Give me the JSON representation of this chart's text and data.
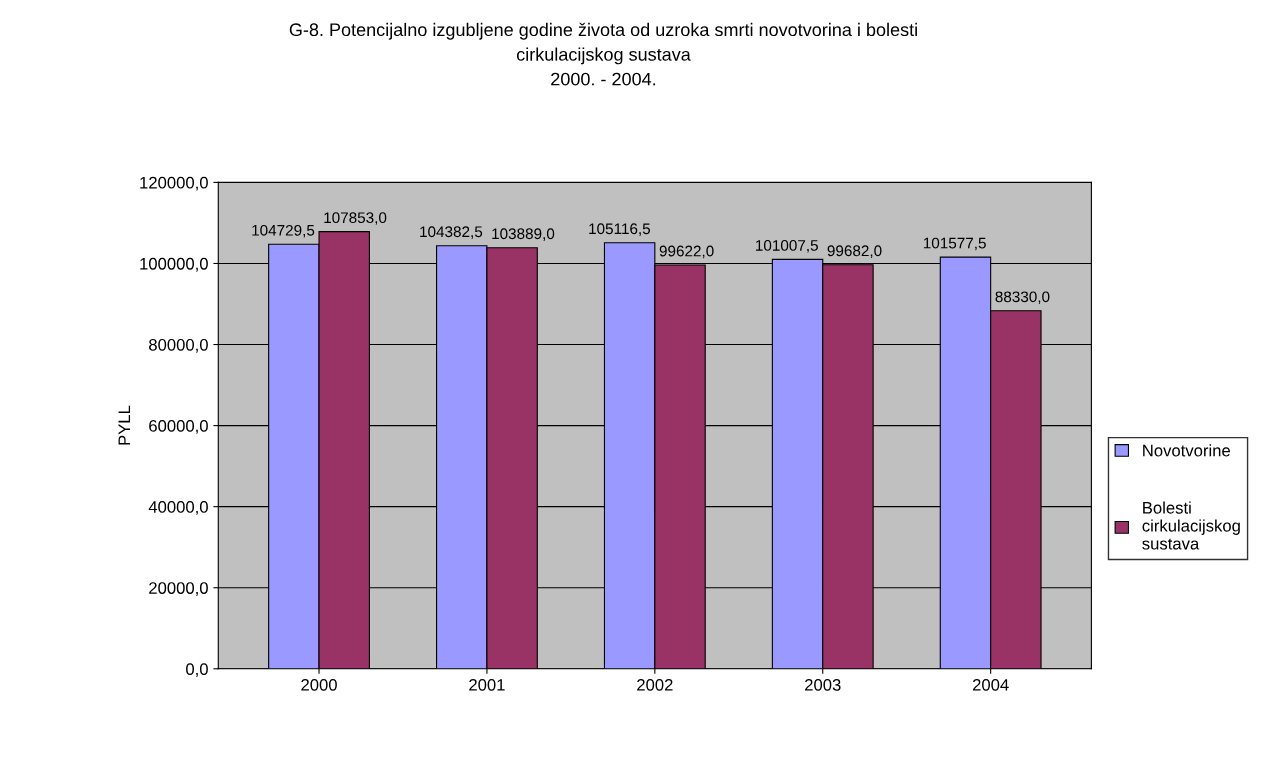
{
  "chart_data": {
    "type": "bar",
    "title": "G-8. Potencijalno izgubljene godine života od uzroka smrti novotvorina i bolesti\ncirkulacijskog sustava\n2000. - 2004.",
    "ylabel": "PYLL",
    "categories": [
      "2000",
      "2001",
      "2002",
      "2003",
      "2004"
    ],
    "series": [
      {
        "name": "Novotvorine",
        "color": "#9999ff",
        "values": [
          104729.5,
          104382.5,
          105116.5,
          101007.5,
          101577.5
        ],
        "value_labels": [
          "104729,5",
          "104382,5",
          "105116,5",
          "101007,5",
          "101577,5"
        ]
      },
      {
        "name": "Bolesti\ncirkulacijskog\nsustava",
        "color": "#993366",
        "values": [
          107853.0,
          103889.0,
          99622.0,
          99682.0,
          88330.0
        ],
        "value_labels": [
          "107853,0",
          "103889,0",
          "99622,0",
          "99682,0",
          "88330,0"
        ]
      }
    ],
    "ylim": [
      0,
      120000
    ],
    "yticks": [
      {
        "value": 0,
        "label": "0,0"
      },
      {
        "value": 20000,
        "label": "20000,0"
      },
      {
        "value": 40000,
        "label": "40000,0"
      },
      {
        "value": 60000,
        "label": "60000,0"
      },
      {
        "value": 80000,
        "label": "80000,0"
      },
      {
        "value": 100000,
        "label": "100000,0"
      },
      {
        "value": 120000,
        "label": "120000,0"
      }
    ],
    "grid": "y",
    "legend": "right"
  }
}
